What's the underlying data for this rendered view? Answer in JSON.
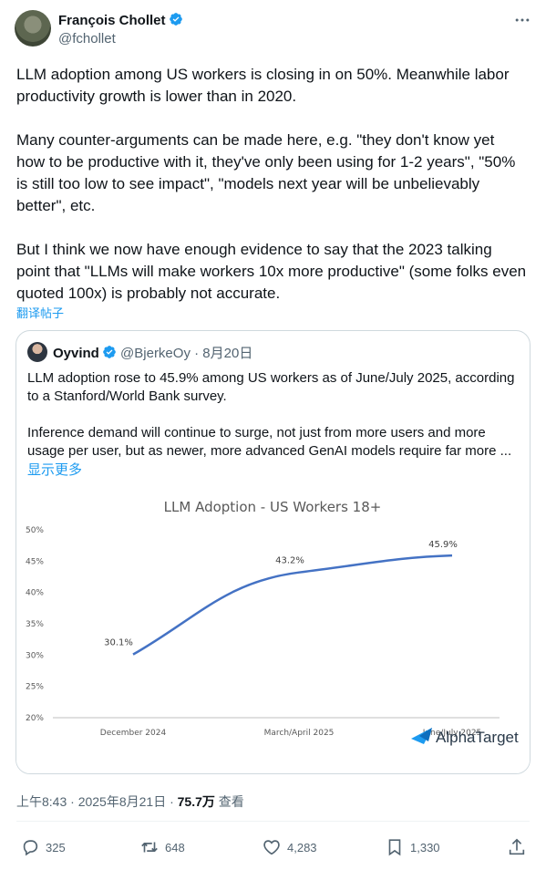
{
  "author": {
    "name": "François Chollet",
    "handle": "@fchollet"
  },
  "tweet_text": "LLM adoption among US workers is closing in on 50%. Meanwhile labor productivity growth is lower than in 2020.\n\nMany counter-arguments can be made here, e.g. \"they don't know yet how to be productive with it, they've only been using for 1-2 years\", \"50% is still too low to see impact\", \"models next year will be unbelievably better\", etc.\n\nBut I think we now have enough evidence to say that the 2023 talking point that \"LLMs will make workers 10x more productive\" (some folks even quoted 100x) is probably not accurate.",
  "translate_label": "翻译帖子",
  "quote": {
    "name": "Oyvind",
    "handle": "@BjerkeOy",
    "date": "· 8月20日",
    "text": "LLM adoption rose to 45.9% among US workers as of June/July 2025, according to a Stanford/World Bank survey.\n\nInference demand will continue to surge, not just from more users and more usage per user, but as newer, more advanced GenAI models require far more ...",
    "show_more": "显示更多"
  },
  "chart_data": {
    "type": "line",
    "title": "LLM Adoption - US Workers 18+",
    "categories": [
      "December 2024",
      "March/April 2025",
      "June/July 2025"
    ],
    "series": [
      {
        "values": [
          30.1,
          43.2,
          45.9
        ]
      }
    ],
    "data_labels": [
      "30.1%",
      "43.2%",
      "45.9%"
    ],
    "y_ticks": [
      "50%",
      "45%",
      "40%",
      "35%",
      "30%",
      "25%",
      "20%"
    ],
    "ylim": [
      20,
      50
    ],
    "line_color": "#4472c4",
    "watermark": "AlphaTarget"
  },
  "meta": {
    "time": "上午8:43 · 2025年8月21日 · ",
    "views": "75.7万",
    "views_label": " 查看"
  },
  "actions": {
    "replies": "325",
    "retweets": "648",
    "likes": "4,283",
    "bookmarks": "1,330"
  },
  "colors": {
    "accent": "#1d9bf0",
    "secondary_text": "#536471"
  }
}
